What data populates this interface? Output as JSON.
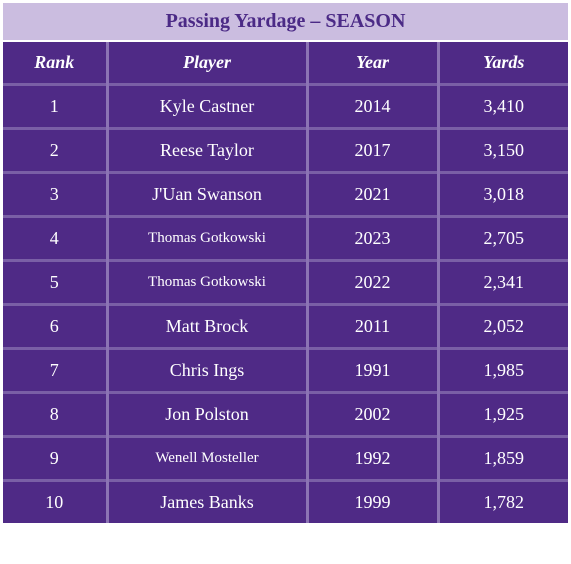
{
  "title": "Passing Yardage – SEASON",
  "table": {
    "columns": [
      "Rank",
      "Player",
      "Year",
      "Yards"
    ],
    "rows": [
      [
        "1",
        "Kyle Castner",
        "2014",
        "3,410"
      ],
      [
        "2",
        "Reese Taylor",
        "2017",
        "3,150"
      ],
      [
        "3",
        "J'Uan Swanson",
        "2021",
        "3,018"
      ],
      [
        "4",
        "Thomas Gotkowski",
        "2023",
        "2,705"
      ],
      [
        "5",
        "Thomas Gotkowski",
        "2022",
        "2,341"
      ],
      [
        "6",
        "Matt Brock",
        "2011",
        "2,052"
      ],
      [
        "7",
        "Chris Ings",
        "1991",
        "1,985"
      ],
      [
        "8",
        "Jon Polston",
        "2002",
        "1,925"
      ],
      [
        "9",
        "Wenell Mosteller",
        "1992",
        "1,859"
      ],
      [
        "10",
        "James Banks",
        "1999",
        "1,782"
      ]
    ]
  }
}
